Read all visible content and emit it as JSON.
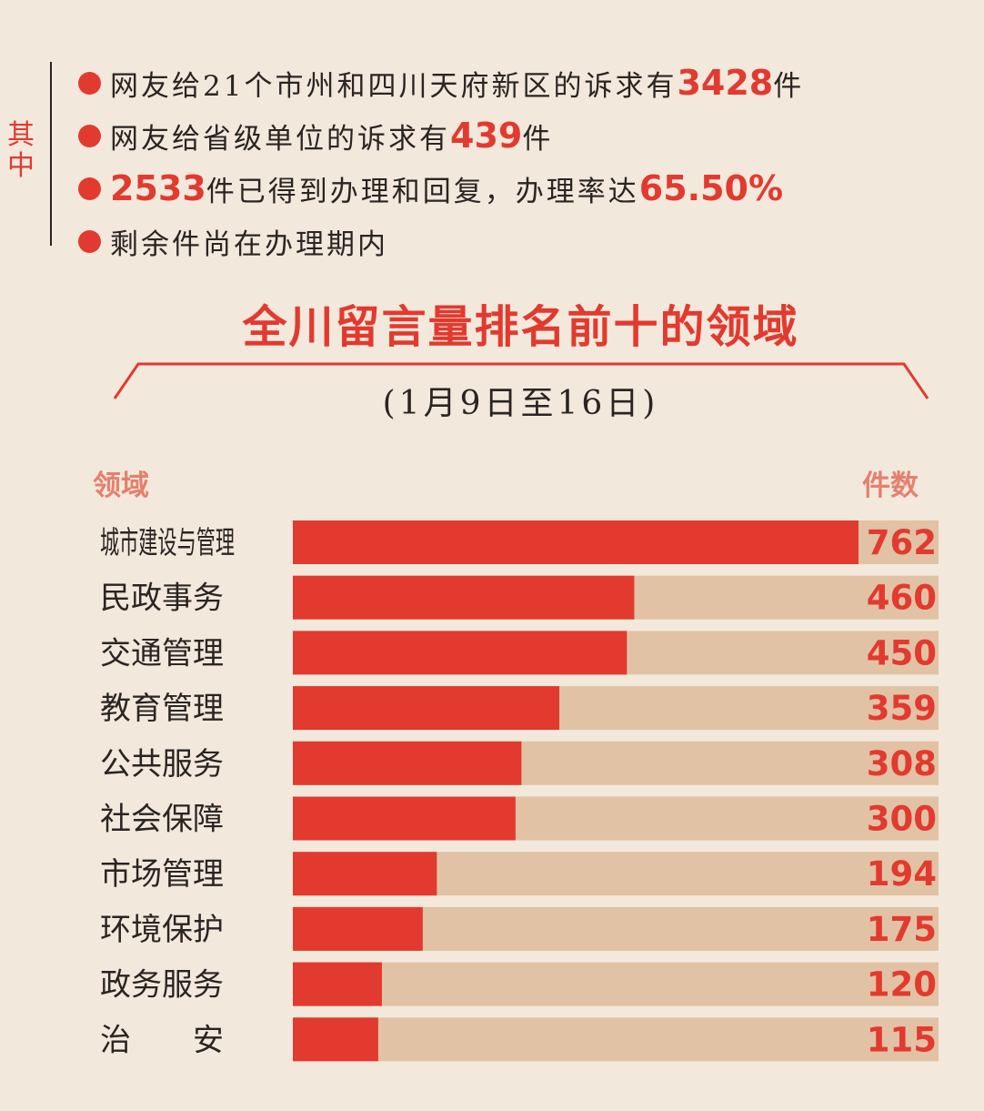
{
  "side_label": "其中",
  "bullets": [
    {
      "pre": "网友给21个市州和四川天府新区的诉求有",
      "num": "3428",
      "post": "件"
    },
    {
      "pre": "网友给省级单位的诉求有",
      "num": "439",
      "post": "件"
    },
    {
      "pre": "",
      "num": "2533",
      "mid": "件已得到办理和回复，办理率达",
      "num2": "65.50%"
    },
    {
      "pre": "剩余件尚在办理期内"
    }
  ],
  "colors": {
    "accent": "#e23a2f",
    "track": "#e1c2a4",
    "background": "#f3e8dc",
    "header": "#e5806f"
  },
  "chart_data": {
    "type": "bar",
    "orientation": "horizontal",
    "title": "全川留言量排名前十的领域",
    "subtitle": "(1月9日至16日)",
    "category_header": "领域",
    "value_header": "件数",
    "categories": [
      "城市建设与管理",
      "民政事务",
      "交通管理",
      "教育管理",
      "公共服务",
      "社会保障",
      "市场管理",
      "环境保护",
      "政务服务",
      "治　　安"
    ],
    "values": [
      762,
      460,
      450,
      359,
      308,
      300,
      194,
      175,
      120,
      115
    ],
    "xlim": [
      0,
      762
    ],
    "grid": false,
    "legend": "none"
  }
}
